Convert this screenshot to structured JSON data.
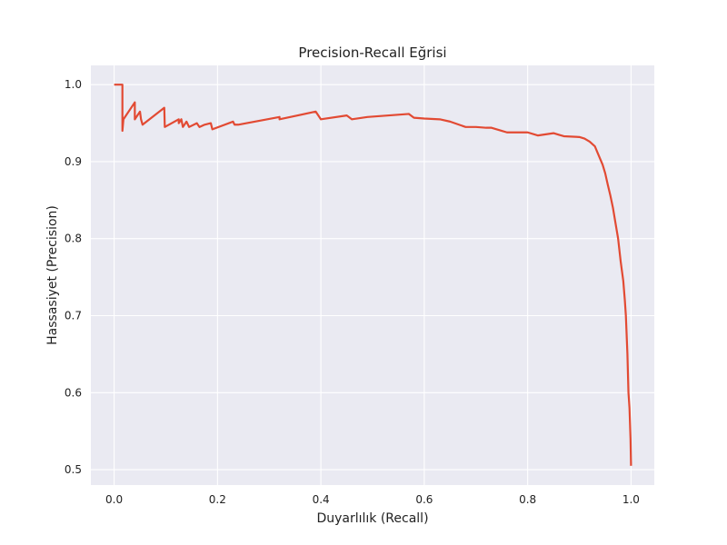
{
  "chart_data": {
    "type": "line",
    "title": "Precision-Recall Eğrisi",
    "xlabel": "Duyarlılık (Recall)",
    "ylabel": "Hassasiyet (Precision)",
    "xlim": [
      -0.045,
      1.045
    ],
    "ylim": [
      0.48,
      1.025
    ],
    "xticks": [
      0.0,
      0.2,
      0.4,
      0.6,
      0.8,
      1.0
    ],
    "xtick_labels": [
      "0.0",
      "0.2",
      "0.4",
      "0.6",
      "0.8",
      "1.0"
    ],
    "yticks": [
      0.5,
      0.6,
      0.7,
      0.8,
      0.9,
      1.0
    ],
    "ytick_labels": [
      "0.5",
      "0.6",
      "0.7",
      "0.8",
      "0.9",
      "1.0"
    ],
    "grid": true,
    "colors": {
      "line": "#e24a33",
      "plot_bg": "#eaeaf2",
      "grid": "#ffffff"
    },
    "series": [
      {
        "x": [
          0.0,
          0.016,
          0.016,
          0.018,
          0.04,
          0.04,
          0.05,
          0.052,
          0.055,
          0.097,
          0.098,
          0.125,
          0.125,
          0.13,
          0.133,
          0.14,
          0.145,
          0.16,
          0.165,
          0.175,
          0.187,
          0.19,
          0.23,
          0.233,
          0.24,
          0.32,
          0.32,
          0.39,
          0.4,
          0.45,
          0.46,
          0.49,
          0.57,
          0.58,
          0.6,
          0.63,
          0.65,
          0.68,
          0.69,
          0.7,
          0.72,
          0.73,
          0.75,
          0.76,
          0.8,
          0.82,
          0.85,
          0.86,
          0.87,
          0.9,
          0.91,
          0.92,
          0.93,
          0.935,
          0.945,
          0.95,
          0.955,
          0.96,
          0.965,
          0.97,
          0.975,
          0.98,
          0.985,
          0.988,
          0.99,
          0.993,
          0.995,
          0.997,
          0.998,
          0.999,
          1.0
        ],
        "y": [
          1.0,
          1.0,
          0.94,
          0.955,
          0.977,
          0.955,
          0.965,
          0.955,
          0.948,
          0.97,
          0.945,
          0.955,
          0.95,
          0.955,
          0.945,
          0.952,
          0.945,
          0.95,
          0.945,
          0.948,
          0.95,
          0.942,
          0.952,
          0.948,
          0.948,
          0.958,
          0.955,
          0.965,
          0.955,
          0.96,
          0.955,
          0.958,
          0.962,
          0.957,
          0.956,
          0.955,
          0.952,
          0.945,
          0.945,
          0.945,
          0.944,
          0.944,
          0.94,
          0.938,
          0.938,
          0.934,
          0.937,
          0.935,
          0.933,
          0.932,
          0.93,
          0.926,
          0.92,
          0.912,
          0.896,
          0.885,
          0.87,
          0.856,
          0.84,
          0.82,
          0.8,
          0.77,
          0.745,
          0.72,
          0.7,
          0.65,
          0.6,
          0.58,
          0.56,
          0.54,
          0.505
        ]
      }
    ]
  }
}
